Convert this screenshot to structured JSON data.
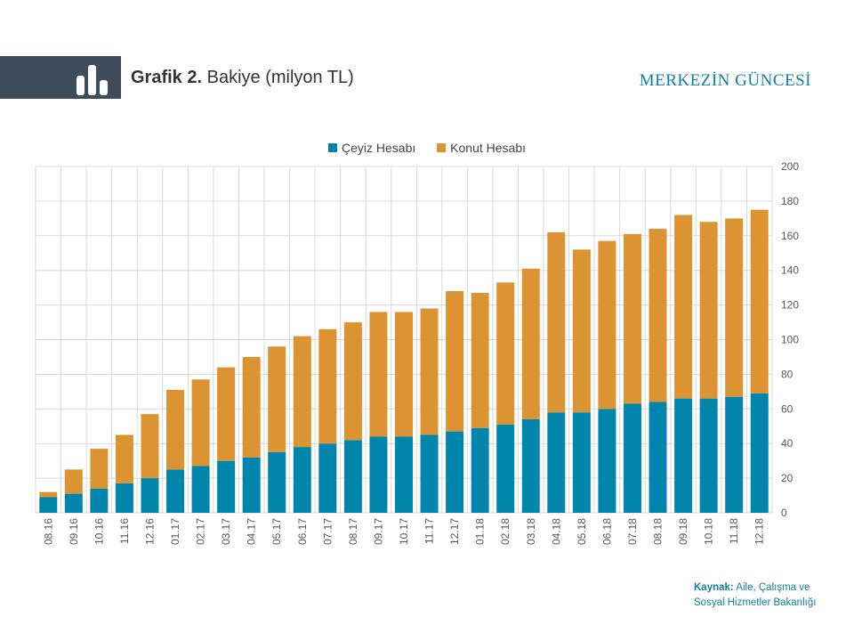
{
  "header": {
    "grafik_label": "Grafik 2.",
    "title": "Bakiye (milyon TL)",
    "brand": "MERKEZİN GÜNCESİ",
    "icon": "bar-chart-icon"
  },
  "source": {
    "label": "Kaynak:",
    "text_line1": "Aile, Çalışma ve",
    "text_line2": "Sosyal Hizmetler Bakanlığı"
  },
  "colors": {
    "ceyiz": "#0086ad",
    "konut": "#dc9331",
    "header_block": "#3f4c5c",
    "accent": "#0f7fa4"
  },
  "chart_data": {
    "type": "bar",
    "stacked": true,
    "categories": [
      "08.16",
      "09.16",
      "10.16",
      "11.16",
      "12.16",
      "01.17",
      "02.17",
      "03.17",
      "04.17",
      "05.17",
      "06.17",
      "07.17",
      "08.17",
      "09.17",
      "10.17",
      "11.17",
      "12.17",
      "01.18",
      "02.18",
      "03.18",
      "04.18",
      "05.18",
      "06.18",
      "07.18",
      "08.18",
      "09.18",
      "10.18",
      "11.18",
      "12.18"
    ],
    "series": [
      {
        "name": "Çeyiz Hesabı",
        "color": "#0086ad",
        "values": [
          9,
          11,
          14,
          17,
          20,
          25,
          27,
          30,
          32,
          35,
          38,
          40,
          42,
          44,
          44,
          45,
          47,
          49,
          51,
          54,
          58,
          58,
          60,
          63,
          64,
          66,
          66,
          67,
          69
        ]
      },
      {
        "name": "Konut Hesabı",
        "color": "#dc9331",
        "values": [
          3,
          14,
          23,
          28,
          37,
          46,
          50,
          54,
          58,
          61,
          64,
          66,
          68,
          72,
          72,
          73,
          81,
          78,
          82,
          87,
          104,
          94,
          97,
          98,
          100,
          106,
          102,
          103,
          106
        ]
      }
    ],
    "ylim": [
      0,
      200
    ],
    "yticks": [
      0,
      20,
      40,
      60,
      80,
      100,
      120,
      140,
      160,
      180,
      200
    ],
    "y_axis_side": "right",
    "grid": true,
    "legend_position": "top-center",
    "xlabel": "",
    "ylabel": ""
  }
}
